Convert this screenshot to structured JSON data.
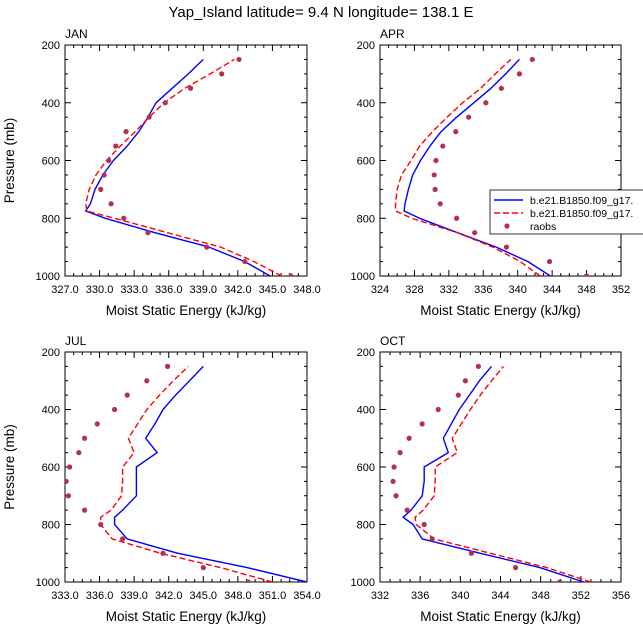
{
  "figure": {
    "title": "Yap_Island  latitude= 9.4 N longitude= 138.1 E"
  },
  "legend": {
    "entries": [
      {
        "label": "b.e21.B1850.f09_g17.",
        "color": "#0000ff",
        "style": "solid"
      },
      {
        "label": "b.e21.B1850.f09_g17.",
        "color": "#ff0000",
        "style": "dashed"
      },
      {
        "label": "raobs",
        "color": "#b0305a",
        "style": "marker"
      }
    ]
  },
  "chart_data": [
    {
      "type": "line",
      "panel": "JAN",
      "title": "JAN",
      "xlabel": "Moist Static Energy (kJ/kg)",
      "ylabel": "Pressure (mb)",
      "xlim": [
        327,
        348
      ],
      "ylim": [
        1000,
        200
      ],
      "xticks": [
        327,
        330,
        333,
        336,
        339,
        342,
        345,
        348
      ],
      "xticklabels": [
        "327.0",
        "330.0",
        "333.0",
        "336.0",
        "339.0",
        "342.0",
        "345.0",
        "348.0"
      ],
      "yticks": [
        200,
        400,
        600,
        800,
        1000
      ],
      "yticklabels": [
        "200",
        "400",
        "600",
        "800",
        "1000"
      ],
      "pressure": [
        1000,
        950,
        900,
        850,
        800,
        775,
        750,
        700,
        650,
        600,
        550,
        500,
        450,
        400,
        350,
        300,
        250
      ],
      "series": [
        {
          "name": "b.e21.B1850.f09_g17.",
          "style": "solid",
          "color": "#0000ff",
          "values": [
            344.8,
            342.6,
            339.5,
            334.8,
            330.5,
            328.8,
            329.2,
            329.6,
            330.3,
            331.2,
            332.4,
            333.4,
            334.2,
            334.9,
            336.3,
            337.7,
            339.0
          ]
        },
        {
          "name": "b.e21.B1850.f09_g17.",
          "style": "dashed",
          "color": "#ff0000",
          "values": [
            345.8,
            343.4,
            340.5,
            335.9,
            331.3,
            328.9,
            328.8,
            329.1,
            329.7,
            330.6,
            331.8,
            333.1,
            334.3,
            335.6,
            337.4,
            339.6,
            341.7
          ]
        },
        {
          "name": "raobs",
          "style": "marker",
          "color": "#b0305a",
          "values": [
            346.6,
            342.6,
            339.3,
            334.2,
            332.1,
            null,
            331.0,
            330.1,
            330.4,
            330.8,
            331.4,
            332.3,
            334.3,
            335.7,
            337.9,
            340.6,
            342.1
          ]
        }
      ]
    },
    {
      "type": "line",
      "panel": "APR",
      "title": "APR",
      "xlabel": "Moist Static Energy (kJ/kg)",
      "ylabel": "",
      "xlim": [
        324,
        352
      ],
      "ylim": [
        1000,
        200
      ],
      "xticks": [
        324,
        328,
        332,
        336,
        340,
        344,
        348,
        352
      ],
      "xticklabels": [
        "324",
        "328",
        "332",
        "336",
        "340",
        "344",
        "348",
        "352"
      ],
      "yticks": [
        200,
        400,
        600,
        800,
        1000
      ],
      "yticklabels": [
        "200",
        "400",
        "600",
        "800",
        "1000"
      ],
      "pressure": [
        1000,
        950,
        900,
        850,
        800,
        775,
        750,
        700,
        650,
        600,
        550,
        500,
        450,
        400,
        350,
        300,
        250
      ],
      "series": [
        {
          "name": "b.e21.B1850.f09_g17.",
          "style": "solid",
          "color": "#0000ff",
          "values": [
            343.8,
            341.2,
            337.5,
            333.0,
            328.6,
            326.8,
            326.9,
            327.3,
            327.8,
            328.7,
            329.8,
            331.1,
            332.9,
            334.9,
            336.9,
            338.6,
            340.2
          ]
        },
        {
          "name": "b.e21.B1850.f09_g17.",
          "style": "dashed",
          "color": "#ff0000",
          "values": [
            342.6,
            340.3,
            337.1,
            333.0,
            327.7,
            325.8,
            325.8,
            326.0,
            326.5,
            327.6,
            328.6,
            330.1,
            331.8,
            333.6,
            335.7,
            337.4,
            339.2
          ]
        },
        {
          "name": "raobs",
          "style": "marker",
          "color": "#b0305a",
          "values": [
            348.0,
            343.7,
            338.7,
            335.0,
            332.9,
            null,
            331.0,
            330.4,
            330.3,
            330.5,
            331.3,
            332.8,
            334.3,
            336.3,
            338.1,
            340.2,
            341.7
          ]
        }
      ]
    },
    {
      "type": "line",
      "panel": "JUL",
      "title": "JUL",
      "xlabel": "Moist Static Energy (kJ/kg)",
      "ylabel": "Pressure (mb)",
      "xlim": [
        333,
        354
      ],
      "ylim": [
        1000,
        200
      ],
      "xticks": [
        333,
        336,
        339,
        342,
        345,
        348,
        351,
        354
      ],
      "xticklabels": [
        "333.0",
        "336.0",
        "339.0",
        "342.0",
        "345.0",
        "348.0",
        "351.0",
        "354.0"
      ],
      "yticks": [
        200,
        400,
        600,
        800,
        1000
      ],
      "yticklabels": [
        "200",
        "400",
        "600",
        "800",
        "1000"
      ],
      "pressure": [
        1000,
        950,
        900,
        850,
        800,
        775,
        750,
        700,
        650,
        600,
        550,
        500,
        450,
        400,
        350,
        300,
        250
      ],
      "series": [
        {
          "name": "b.e21.B1850.f09_g17.",
          "style": "solid",
          "color": "#0000ff",
          "values": [
            354.0,
            348.8,
            342.8,
            338.4,
            337.3,
            337.3,
            338.0,
            339.2,
            339.2,
            339.2,
            341.0,
            340.0,
            340.8,
            341.5,
            342.6,
            343.8,
            345.0
          ]
        },
        {
          "name": "b.e21.B1850.f09_g17.",
          "style": "dashed",
          "color": "#ff0000",
          "values": [
            351.0,
            346.5,
            341.3,
            337.1,
            336.1,
            336.1,
            337.0,
            337.9,
            338.0,
            338.0,
            339.0,
            338.5,
            339.3,
            340.1,
            341.2,
            342.4,
            343.7
          ]
        },
        {
          "name": "raobs",
          "style": "marker",
          "color": "#b0305a",
          "values": [
            348.9,
            345.0,
            341.5,
            338.0,
            336.1,
            null,
            334.7,
            333.3,
            333.1,
            333.4,
            334.2,
            334.7,
            335.8,
            337.3,
            338.4,
            340.1,
            341.9
          ]
        }
      ]
    },
    {
      "type": "line",
      "panel": "OCT",
      "title": "OCT",
      "xlabel": "Moist Static Energy (kJ/kg)",
      "ylabel": "",
      "xlim": [
        332,
        356
      ],
      "ylim": [
        1000,
        200
      ],
      "xticks": [
        332,
        336,
        340,
        344,
        348,
        352,
        356
      ],
      "xticklabels": [
        "332",
        "336",
        "340",
        "344",
        "348",
        "352",
        "356"
      ],
      "yticks": [
        200,
        400,
        600,
        800,
        1000
      ],
      "yticklabels": [
        "200",
        "400",
        "600",
        "800",
        "1000"
      ],
      "pressure": [
        1000,
        950,
        900,
        850,
        800,
        775,
        750,
        700,
        650,
        600,
        550,
        500,
        450,
        400,
        350,
        300,
        250
      ],
      "series": [
        {
          "name": "b.e21.B1850.f09_g17.",
          "style": "solid",
          "color": "#0000ff",
          "values": [
            352.3,
            347.9,
            342.0,
            336.2,
            335.3,
            334.3,
            335.1,
            336.2,
            336.4,
            336.4,
            338.8,
            338.3,
            339.1,
            339.9,
            340.9,
            341.9,
            343.1
          ]
        },
        {
          "name": "b.e21.B1850.f09_g17.",
          "style": "dashed",
          "color": "#ff0000",
          "values": [
            353.0,
            348.6,
            343.0,
            337.4,
            335.6,
            335.5,
            336.3,
            337.4,
            337.5,
            337.5,
            339.7,
            339.2,
            340.1,
            341.0,
            342.0,
            343.1,
            344.3
          ]
        },
        {
          "name": "raobs",
          "style": "marker",
          "color": "#b0305a",
          "values": [
            349.9,
            345.5,
            341.1,
            337.2,
            336.4,
            null,
            334.7,
            333.6,
            333.3,
            333.4,
            334.0,
            334.9,
            336.2,
            337.8,
            339.8,
            340.5,
            341.8
          ]
        }
      ]
    }
  ]
}
